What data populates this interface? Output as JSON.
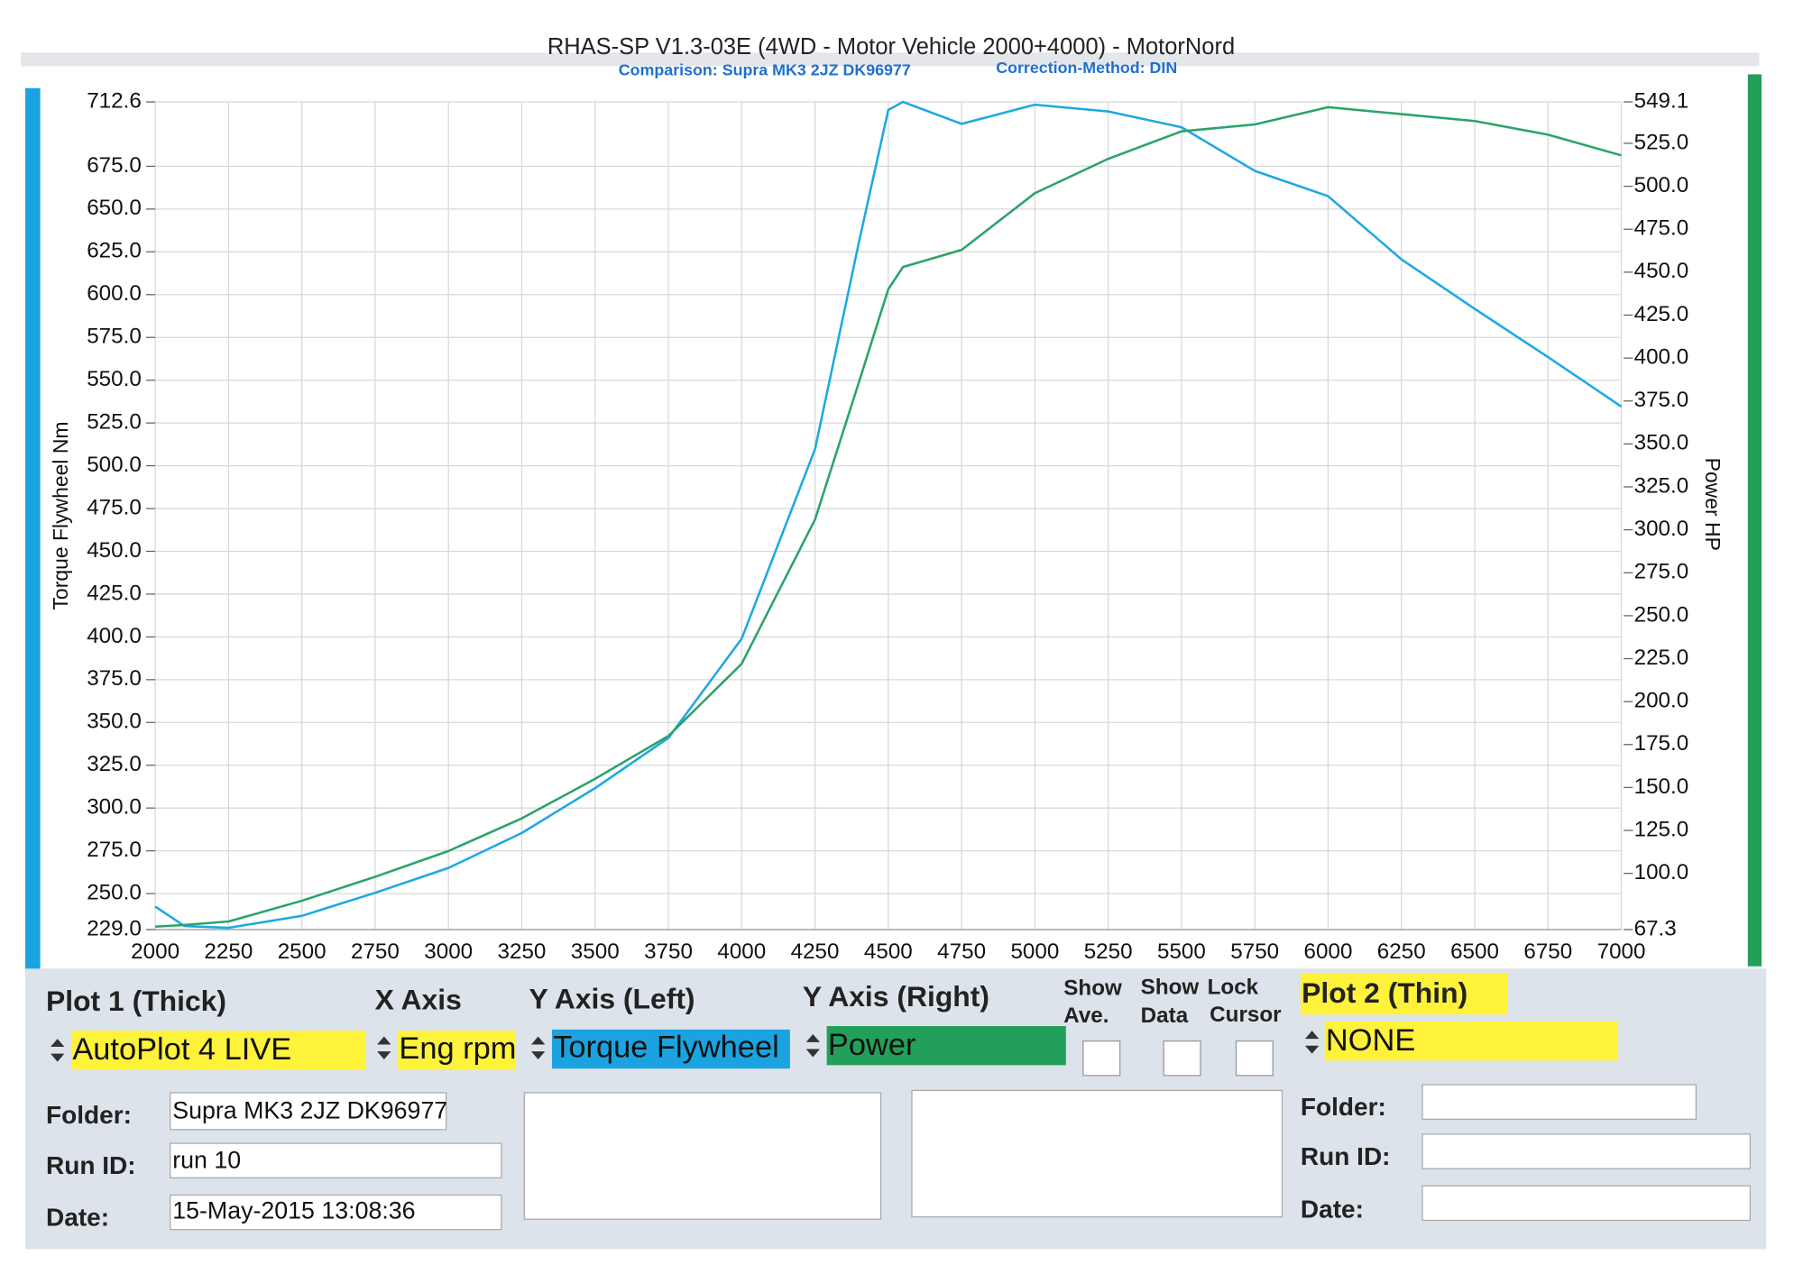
{
  "chart_data": {
    "type": "line",
    "title": "RHAS-SP V1.3-03E  (4WD - Motor Vehicle 2000+4000) - MotorNord",
    "subtitle": "Comparison: Supra MK3 2JZ DK96977",
    "correction": "Correction-Method: DIN",
    "ylabel": "Torque Flywheel Nm",
    "y2label": "Power HP",
    "x": [
      2000,
      2100,
      2250,
      2500,
      2750,
      3000,
      3250,
      3500,
      3750,
      4000,
      4250,
      4400,
      4500,
      4550,
      4750,
      5000,
      5250,
      5500,
      5750,
      6000,
      6250,
      6500,
      6750,
      7000
    ],
    "series": [
      {
        "color": "#1ea8e2",
        "values": [
          242.4,
          231,
          230,
          237,
          250.5,
          265,
          285.4,
          311.6,
          341,
          398.9,
          509.7,
          630.7,
          707.9,
          712.6,
          699.8,
          711,
          707,
          697.8,
          672.3,
          657.5,
          620.6,
          591.7,
          563.5,
          534.6
        ]
      },
      {
        "color": "#2ba36b",
        "axis": "y2",
        "values": [
          69,
          70,
          72,
          84,
          98,
          113,
          132,
          155,
          180,
          222,
          306,
          386,
          440,
          453,
          463,
          496,
          516,
          532,
          536,
          546,
          542,
          538,
          530,
          518
        ]
      }
    ],
    "xlim": [
      2000,
      7000
    ],
    "xticks": [
      2000,
      2250,
      2500,
      2750,
      3000,
      3250,
      3500,
      3750,
      4000,
      4250,
      4500,
      4750,
      5000,
      5250,
      5500,
      5750,
      6000,
      6250,
      6500,
      6750,
      7000
    ],
    "ylim": [
      229.0,
      712.6
    ],
    "yticks": [
      {
        "value": 229,
        "label": "229.0"
      },
      {
        "value": 250,
        "label": "250.0"
      },
      {
        "value": 275,
        "label": "275.0"
      },
      {
        "value": 300,
        "label": "300.0"
      },
      {
        "value": 325,
        "label": "325.0"
      },
      {
        "value": 350,
        "label": "350.0"
      },
      {
        "value": 375,
        "label": "375.0"
      },
      {
        "value": 400,
        "label": "400.0"
      },
      {
        "value": 425,
        "label": "425.0"
      },
      {
        "value": 450,
        "label": "450.0"
      },
      {
        "value": 475,
        "label": "475.0"
      },
      {
        "value": 500,
        "label": "500.0"
      },
      {
        "value": 525,
        "label": "525.0"
      },
      {
        "value": 550,
        "label": "550.0"
      },
      {
        "value": 575,
        "label": "575.0"
      },
      {
        "value": 600,
        "label": "600.0"
      },
      {
        "value": 625,
        "label": "625.0"
      },
      {
        "value": 650,
        "label": "650.0"
      },
      {
        "value": 675,
        "label": "675.0"
      },
      {
        "value": 712.6,
        "label": "712.6"
      }
    ],
    "y2lim": [
      67.3,
      549.1
    ],
    "y2ticks": [
      {
        "value": 67.3,
        "label": "67.3"
      },
      {
        "value": 100,
        "label": "100.0"
      },
      {
        "value": 125,
        "label": "125.0"
      },
      {
        "value": 150,
        "label": "150.0"
      },
      {
        "value": 175,
        "label": "175.0"
      },
      {
        "value": 200,
        "label": "200.0"
      },
      {
        "value": 225,
        "label": "225.0"
      },
      {
        "value": 250,
        "label": "250.0"
      },
      {
        "value": 275,
        "label": "275.0"
      },
      {
        "value": 300,
        "label": "300.0"
      },
      {
        "value": 325,
        "label": "325.0"
      },
      {
        "value": 350,
        "label": "350.0"
      },
      {
        "value": 375,
        "label": "375.0"
      },
      {
        "value": 400,
        "label": "400.0"
      },
      {
        "value": 425,
        "label": "425.0"
      },
      {
        "value": 450,
        "label": "450.0"
      },
      {
        "value": 475,
        "label": "475.0"
      },
      {
        "value": 500,
        "label": "500.0"
      },
      {
        "value": 525,
        "label": "525.0"
      },
      {
        "value": 549.1,
        "label": "549.1"
      }
    ],
    "grid": true
  },
  "panel": {
    "plot1": "Plot 1 (Thick)",
    "xaxis": "X Axis",
    "yleft": "Y Axis (Left)",
    "yright": "Y Axis (Right)",
    "show": "Show",
    "ave": "Ave.",
    "show2": "Show",
    "data": "Data",
    "lock": "Lock",
    "cursor": "Cursor",
    "plot2": "Plot 2 (Thin)",
    "plot1_value": "AutoPlot 4 LIVE",
    "xaxis_value": "Eng rpm",
    "yleft_value": "Torque Flywheel",
    "yright_value": "Power",
    "plot2_value": "NONE",
    "folder": "Folder:",
    "runid": "Run ID:",
    "date": "Date:",
    "folder_value": "Supra MK3 2JZ DK96977",
    "runid_value": "run 10",
    "date_value": "15-May-2015  13:08:36",
    "folder2": "Folder:",
    "runid2": "Run ID:",
    "date2": "Date:"
  }
}
